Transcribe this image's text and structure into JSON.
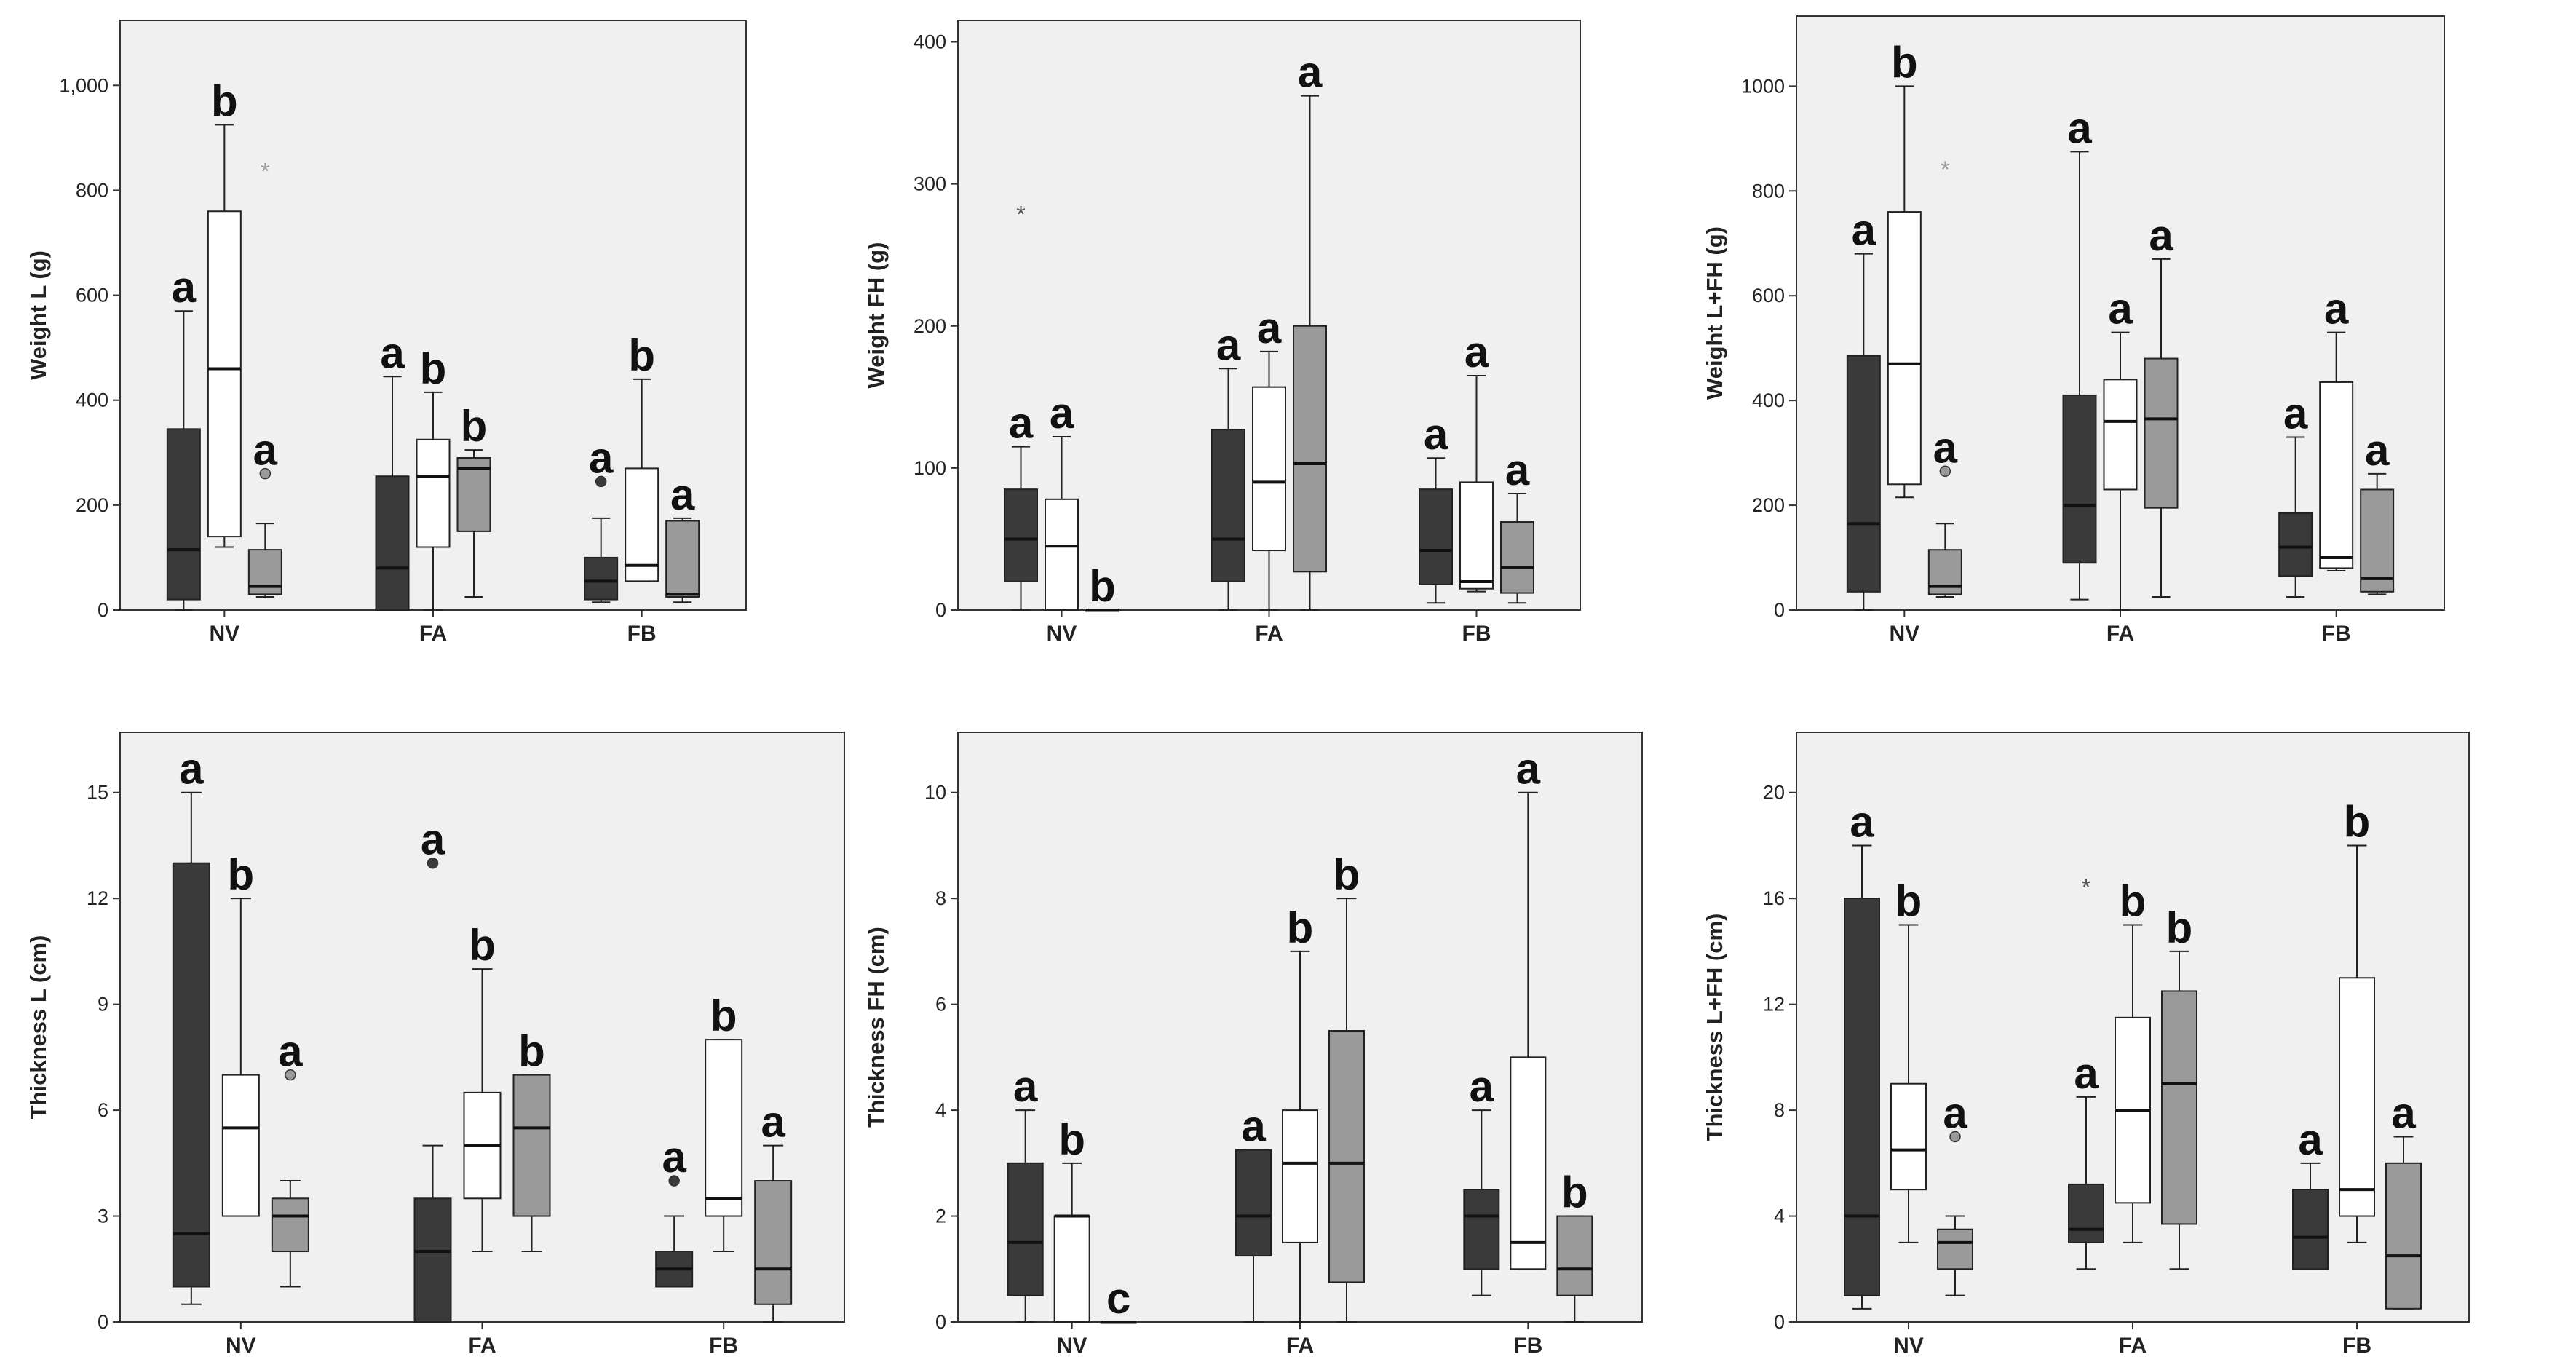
{
  "chart_data": [
    {
      "type": "boxplot",
      "ylabel": "Weight L (g)",
      "ylim": [
        0,
        1110
      ],
      "yticks": [
        0,
        200,
        400,
        600,
        800,
        1000
      ],
      "ytick_labels": [
        "0",
        "200",
        "400",
        "600",
        "800",
        "1,000"
      ],
      "categories": [
        "NV",
        "FA",
        "FB"
      ],
      "series_colors": [
        "#3a3a3a",
        "#ffffff",
        "#9a9a9a"
      ],
      "boxes": [
        {
          "cat": 0,
          "s": 0,
          "min": 0,
          "q1": 20,
          "med": 115,
          "q3": 345,
          "max": 570,
          "label": "a"
        },
        {
          "cat": 0,
          "s": 1,
          "min": 120,
          "q1": 140,
          "med": 460,
          "q3": 760,
          "max": 925,
          "label": "b"
        },
        {
          "cat": 0,
          "s": 2,
          "min": 25,
          "q1": 30,
          "med": 45,
          "q3": 115,
          "max": 165,
          "label": "a",
          "outliers": [
            {
              "v": 260,
              "m": "circle"
            },
            {
              "v": 840,
              "m": "star"
            }
          ]
        },
        {
          "cat": 1,
          "s": 0,
          "min": 0,
          "q1": 0,
          "med": 80,
          "q3": 255,
          "max": 445,
          "label": "a"
        },
        {
          "cat": 1,
          "s": 1,
          "min": 0,
          "q1": 120,
          "med": 255,
          "q3": 325,
          "max": 415,
          "label": "b"
        },
        {
          "cat": 1,
          "s": 2,
          "min": 25,
          "q1": 150,
          "med": 270,
          "q3": 290,
          "max": 305,
          "label": "b"
        },
        {
          "cat": 2,
          "s": 0,
          "min": 15,
          "q1": 20,
          "med": 55,
          "q3": 100,
          "max": 175,
          "label": "a",
          "outliers": [
            {
              "v": 245,
              "m": "circle"
            }
          ]
        },
        {
          "cat": 2,
          "s": 1,
          "min": 55,
          "q1": 55,
          "med": 85,
          "q3": 270,
          "max": 440,
          "label": "b"
        },
        {
          "cat": 2,
          "s": 2,
          "min": 15,
          "q1": 25,
          "med": 30,
          "q3": 170,
          "max": 175,
          "label": "a"
        }
      ]
    },
    {
      "type": "boxplot",
      "ylabel": "Weight FH (g)",
      "ylim": [
        0,
        410
      ],
      "yticks": [
        0,
        100,
        200,
        300,
        400
      ],
      "ytick_labels": [
        "0",
        "100",
        "200",
        "300",
        "400"
      ],
      "categories": [
        "NV",
        "FA",
        "FB"
      ],
      "series_colors": [
        "#3a3a3a",
        "#ffffff",
        "#9a9a9a"
      ],
      "boxes": [
        {
          "cat": 0,
          "s": 0,
          "min": 0,
          "q1": 20,
          "med": 50,
          "q3": 85,
          "max": 115,
          "label": "a",
          "outliers": [
            {
              "v": 280,
              "m": "star"
            }
          ]
        },
        {
          "cat": 0,
          "s": 1,
          "min": 0,
          "q1": 0,
          "med": 45,
          "q3": 78,
          "max": 122,
          "label": "a"
        },
        {
          "cat": 0,
          "s": 2,
          "min": 0,
          "q1": 0,
          "med": 0,
          "q3": 0,
          "max": 0,
          "label": "b"
        },
        {
          "cat": 1,
          "s": 0,
          "min": 0,
          "q1": 20,
          "med": 50,
          "q3": 127,
          "max": 170,
          "label": "a"
        },
        {
          "cat": 1,
          "s": 1,
          "min": 0,
          "q1": 42,
          "med": 90,
          "q3": 157,
          "max": 182,
          "label": "a"
        },
        {
          "cat": 1,
          "s": 2,
          "min": 0,
          "q1": 27,
          "med": 103,
          "q3": 200,
          "max": 362,
          "label": "a"
        },
        {
          "cat": 2,
          "s": 0,
          "min": 5,
          "q1": 18,
          "med": 42,
          "q3": 85,
          "max": 107,
          "label": "a"
        },
        {
          "cat": 2,
          "s": 1,
          "min": 13,
          "q1": 15,
          "med": 20,
          "q3": 90,
          "max": 165,
          "label": "a"
        },
        {
          "cat": 2,
          "s": 2,
          "min": 5,
          "q1": 12,
          "med": 30,
          "q3": 62,
          "max": 82,
          "label": "a"
        }
      ]
    },
    {
      "type": "boxplot",
      "ylabel": "Weight L+FH (g)",
      "ylim": [
        0,
        1120
      ],
      "yticks": [
        0,
        200,
        400,
        600,
        800,
        1000
      ],
      "ytick_labels": [
        "0",
        "200",
        "400",
        "600",
        "800",
        "1000"
      ],
      "categories": [
        "NV",
        "FA",
        "FB"
      ],
      "series_colors": [
        "#3a3a3a",
        "#ffffff",
        "#9a9a9a"
      ],
      "boxes": [
        {
          "cat": 0,
          "s": 0,
          "min": 0,
          "q1": 35,
          "med": 165,
          "q3": 485,
          "max": 680,
          "label": "a"
        },
        {
          "cat": 0,
          "s": 1,
          "min": 215,
          "q1": 240,
          "med": 470,
          "q3": 760,
          "max": 1000,
          "label": "b"
        },
        {
          "cat": 0,
          "s": 2,
          "min": 25,
          "q1": 30,
          "med": 45,
          "q3": 115,
          "max": 165,
          "label": "a",
          "outliers": [
            {
              "v": 265,
              "m": "circle"
            },
            {
              "v": 845,
              "m": "star"
            }
          ]
        },
        {
          "cat": 1,
          "s": 0,
          "min": 20,
          "q1": 90,
          "med": 200,
          "q3": 410,
          "max": 875,
          "label": "a"
        },
        {
          "cat": 1,
          "s": 1,
          "min": 0,
          "q1": 230,
          "med": 360,
          "q3": 440,
          "max": 530,
          "label": "a"
        },
        {
          "cat": 1,
          "s": 2,
          "min": 25,
          "q1": 195,
          "med": 365,
          "q3": 480,
          "max": 670,
          "label": "a"
        },
        {
          "cat": 2,
          "s": 0,
          "min": 25,
          "q1": 65,
          "med": 120,
          "q3": 185,
          "max": 330,
          "label": "a"
        },
        {
          "cat": 2,
          "s": 1,
          "min": 75,
          "q1": 80,
          "med": 100,
          "q3": 435,
          "max": 530,
          "label": "a"
        },
        {
          "cat": 2,
          "s": 2,
          "min": 30,
          "q1": 35,
          "med": 60,
          "q3": 230,
          "max": 260,
          "label": "a"
        }
      ]
    },
    {
      "type": "boxplot",
      "ylabel": "Thickness L (cm)",
      "ylim": [
        0,
        16.5
      ],
      "yticks": [
        0,
        3,
        6,
        9,
        12,
        15
      ],
      "ytick_labels": [
        "0",
        "3",
        "6",
        "9",
        "12",
        "15"
      ],
      "categories": [
        "NV",
        "FA",
        "FB"
      ],
      "series_colors": [
        "#3a3a3a",
        "#ffffff",
        "#9a9a9a"
      ],
      "boxes": [
        {
          "cat": 0,
          "s": 0,
          "min": 0.5,
          "q1": 1,
          "med": 2.5,
          "q3": 13,
          "max": 15,
          "label": "a"
        },
        {
          "cat": 0,
          "s": 1,
          "min": 3,
          "q1": 3,
          "med": 5.5,
          "q3": 7,
          "max": 12,
          "label": "b"
        },
        {
          "cat": 0,
          "s": 2,
          "min": 1,
          "q1": 2,
          "med": 3,
          "q3": 3.5,
          "max": 4,
          "label": "a",
          "outliers": [
            {
              "v": 7,
              "m": "circle"
            }
          ]
        },
        {
          "cat": 1,
          "s": 0,
          "min": 0,
          "q1": 0,
          "med": 2,
          "q3": 3.5,
          "max": 5,
          "label": "a",
          "outliers": [
            {
              "v": 13,
              "m": "circle"
            }
          ]
        },
        {
          "cat": 1,
          "s": 1,
          "min": 2,
          "q1": 3.5,
          "med": 5,
          "q3": 6.5,
          "max": 10,
          "label": "b"
        },
        {
          "cat": 1,
          "s": 2,
          "min": 2,
          "q1": 3,
          "med": 5.5,
          "q3": 7,
          "max": 7,
          "label": "b"
        },
        {
          "cat": 2,
          "s": 0,
          "min": 1,
          "q1": 1,
          "med": 1.5,
          "q3": 2,
          "max": 3,
          "label": "a",
          "outliers": [
            {
              "v": 4,
              "m": "circle"
            }
          ]
        },
        {
          "cat": 2,
          "s": 1,
          "min": 2,
          "q1": 3,
          "med": 3.5,
          "q3": 8,
          "max": 8,
          "label": "b"
        },
        {
          "cat": 2,
          "s": 2,
          "min": 0,
          "q1": 0.5,
          "med": 1.5,
          "q3": 4,
          "max": 5,
          "label": "a"
        }
      ]
    },
    {
      "type": "boxplot",
      "ylabel": "Thickness FH (cm)",
      "ylim": [
        0,
        11
      ],
      "yticks": [
        0,
        2,
        4,
        6,
        8,
        10
      ],
      "ytick_labels": [
        "0",
        "2",
        "4",
        "6",
        "8",
        "10"
      ],
      "categories": [
        "NV",
        "FA",
        "FB"
      ],
      "series_colors": [
        "#3a3a3a",
        "#ffffff",
        "#9a9a9a"
      ],
      "boxes": [
        {
          "cat": 0,
          "s": 0,
          "min": 0,
          "q1": 0.5,
          "med": 1.5,
          "q3": 3,
          "max": 4,
          "label": "a"
        },
        {
          "cat": 0,
          "s": 1,
          "min": 0,
          "q1": 0,
          "med": 2,
          "q3": 2,
          "max": 3,
          "label": "b"
        },
        {
          "cat": 0,
          "s": 2,
          "min": 0,
          "q1": 0,
          "med": 0,
          "q3": 0,
          "max": 0,
          "label": "c"
        },
        {
          "cat": 1,
          "s": 0,
          "min": 0,
          "q1": 1.25,
          "med": 2,
          "q3": 3.25,
          "max": 3.25,
          "label": "a"
        },
        {
          "cat": 1,
          "s": 1,
          "min": 0,
          "q1": 1.5,
          "med": 3,
          "q3": 4,
          "max": 7,
          "label": "b"
        },
        {
          "cat": 1,
          "s": 2,
          "min": 0,
          "q1": 0.75,
          "med": 3,
          "q3": 5.5,
          "max": 8,
          "label": "b"
        },
        {
          "cat": 2,
          "s": 0,
          "min": 0.5,
          "q1": 1,
          "med": 2,
          "q3": 2.5,
          "max": 4,
          "label": "a"
        },
        {
          "cat": 2,
          "s": 1,
          "min": 1,
          "q1": 1,
          "med": 1.5,
          "q3": 5,
          "max": 10,
          "label": "a"
        },
        {
          "cat": 2,
          "s": 2,
          "min": 0,
          "q1": 0.5,
          "med": 1,
          "q3": 2,
          "max": 2,
          "label": "b"
        }
      ]
    },
    {
      "type": "boxplot",
      "ylabel": "Thickness L+FH (cm)",
      "ylim": [
        0,
        22
      ],
      "yticks": [
        0,
        4,
        8,
        12,
        16,
        20
      ],
      "ytick_labels": [
        "0",
        "4",
        "8",
        "12",
        "16",
        "20"
      ],
      "categories": [
        "NV",
        "FA",
        "FB"
      ],
      "series_colors": [
        "#3a3a3a",
        "#ffffff",
        "#9a9a9a"
      ],
      "boxes": [
        {
          "cat": 0,
          "s": 0,
          "min": 0.5,
          "q1": 1,
          "med": 4,
          "q3": 16,
          "max": 18,
          "label": "a"
        },
        {
          "cat": 0,
          "s": 1,
          "min": 3,
          "q1": 5,
          "med": 6.5,
          "q3": 9,
          "max": 15,
          "label": "b"
        },
        {
          "cat": 0,
          "s": 2,
          "min": 1,
          "q1": 2,
          "med": 3,
          "q3": 3.5,
          "max": 4,
          "label": "a",
          "outliers": [
            {
              "v": 7,
              "m": "circle"
            }
          ]
        },
        {
          "cat": 1,
          "s": 0,
          "min": 2,
          "q1": 3,
          "med": 3.5,
          "q3": 5.2,
          "max": 8.5,
          "label": "a",
          "outliers": [
            {
              "v": 16.5,
              "m": "star"
            }
          ]
        },
        {
          "cat": 1,
          "s": 1,
          "min": 3,
          "q1": 4.5,
          "med": 8,
          "q3": 11.5,
          "max": 15,
          "label": "b"
        },
        {
          "cat": 1,
          "s": 2,
          "min": 2,
          "q1": 3.7,
          "med": 9,
          "q3": 12.5,
          "max": 14,
          "label": "b"
        },
        {
          "cat": 2,
          "s": 0,
          "min": 2,
          "q1": 2,
          "med": 3.2,
          "q3": 5,
          "max": 6,
          "label": "a"
        },
        {
          "cat": 2,
          "s": 1,
          "min": 3,
          "q1": 4,
          "med": 5,
          "q3": 13,
          "max": 18,
          "label": "b"
        },
        {
          "cat": 2,
          "s": 2,
          "min": 0.5,
          "q1": 0.5,
          "med": 2.5,
          "q3": 6,
          "max": 7,
          "label": "a"
        }
      ]
    }
  ]
}
